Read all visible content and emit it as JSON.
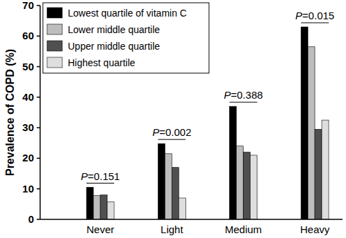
{
  "chart_data": {
    "type": "bar",
    "y_label": "Prevalence of COPD (%)",
    "categories": [
      "Never",
      "Light",
      "Medium",
      "Heavy"
    ],
    "series": [
      {
        "name": "Lowest quartile of vitamin C",
        "color": "#000000",
        "values": [
          10.5,
          24.8,
          37.0,
          63.0
        ]
      },
      {
        "name": "Lower middle quartile",
        "color": "#bdbdbd",
        "values": [
          7.8,
          21.5,
          24.0,
          56.5
        ]
      },
      {
        "name": "Upper middle quartile",
        "color": "#505050",
        "values": [
          8.0,
          17.0,
          22.0,
          29.5
        ]
      },
      {
        "name": "Highest quartile",
        "color": "#dedede",
        "values": [
          5.7,
          7.0,
          21.0,
          32.5
        ]
      }
    ],
    "annotations": [
      "P=0.151",
      "P=0.002",
      "P=0.388",
      "P=0.015"
    ],
    "ylim": [
      0,
      70
    ],
    "yticks": [
      0,
      10,
      20,
      30,
      40,
      50,
      60,
      70
    ],
    "grid": false,
    "legend": "upper left"
  }
}
